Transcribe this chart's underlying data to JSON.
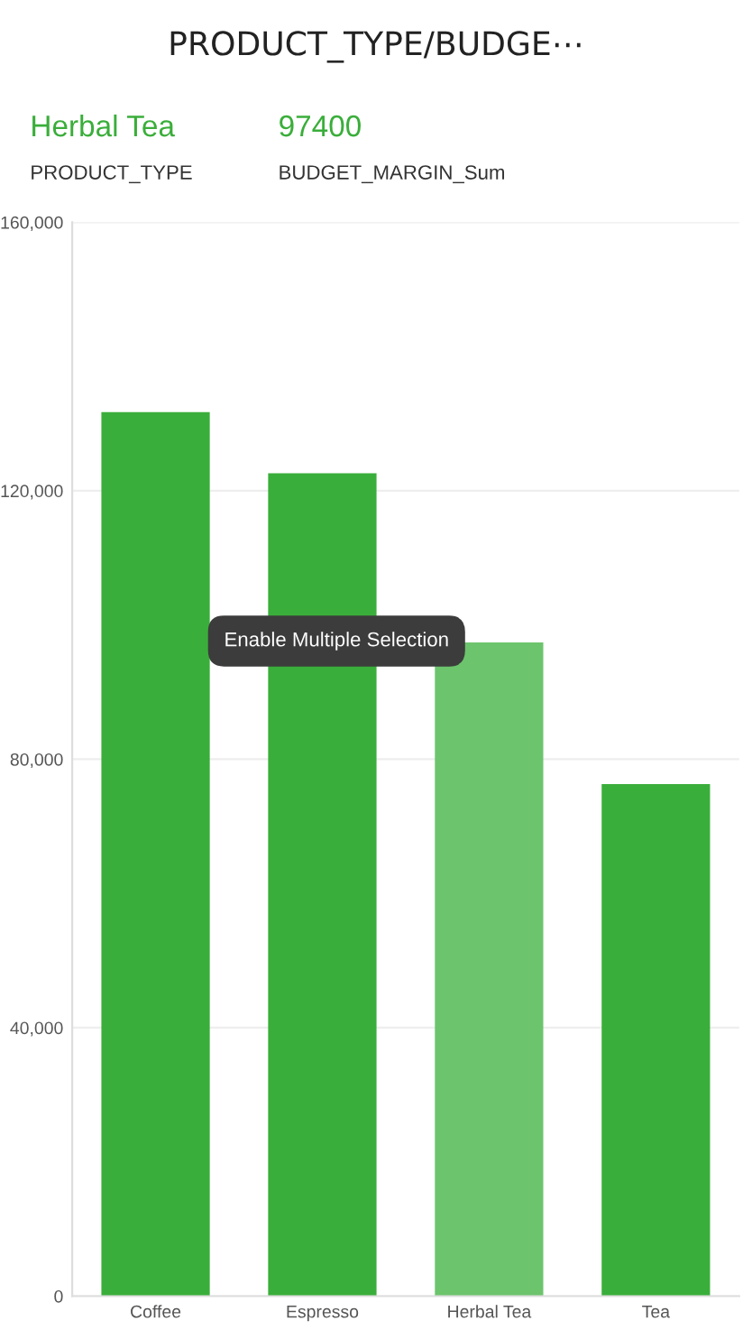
{
  "chart_data": {
    "type": "bar",
    "title": "PRODUCT_TYPE/BUDGE⋯",
    "categories": [
      "Coffee",
      "Espresso",
      "Herbal Tea",
      "Tea"
    ],
    "values": [
      131700,
      122600,
      97400,
      76300
    ],
    "colors": [
      "#3aae3a",
      "#3aae3a",
      "#6cc46c",
      "#3aae3a"
    ],
    "ylim": [
      0,
      160000
    ],
    "yticks": [
      {
        "value": 0,
        "label": "0"
      },
      {
        "value": 40000,
        "label": "40,000"
      },
      {
        "value": 80000,
        "label": "80,000"
      },
      {
        "value": 120000,
        "label": "120,000"
      },
      {
        "value": 160000,
        "label": "160,000"
      }
    ],
    "grid": "y",
    "annotations": [
      "Herbal Tea",
      "97400",
      "PRODUCT_TYPE",
      "BUDGET_MARGIN_Sum",
      "Enable Multiple Selection"
    ]
  }
}
